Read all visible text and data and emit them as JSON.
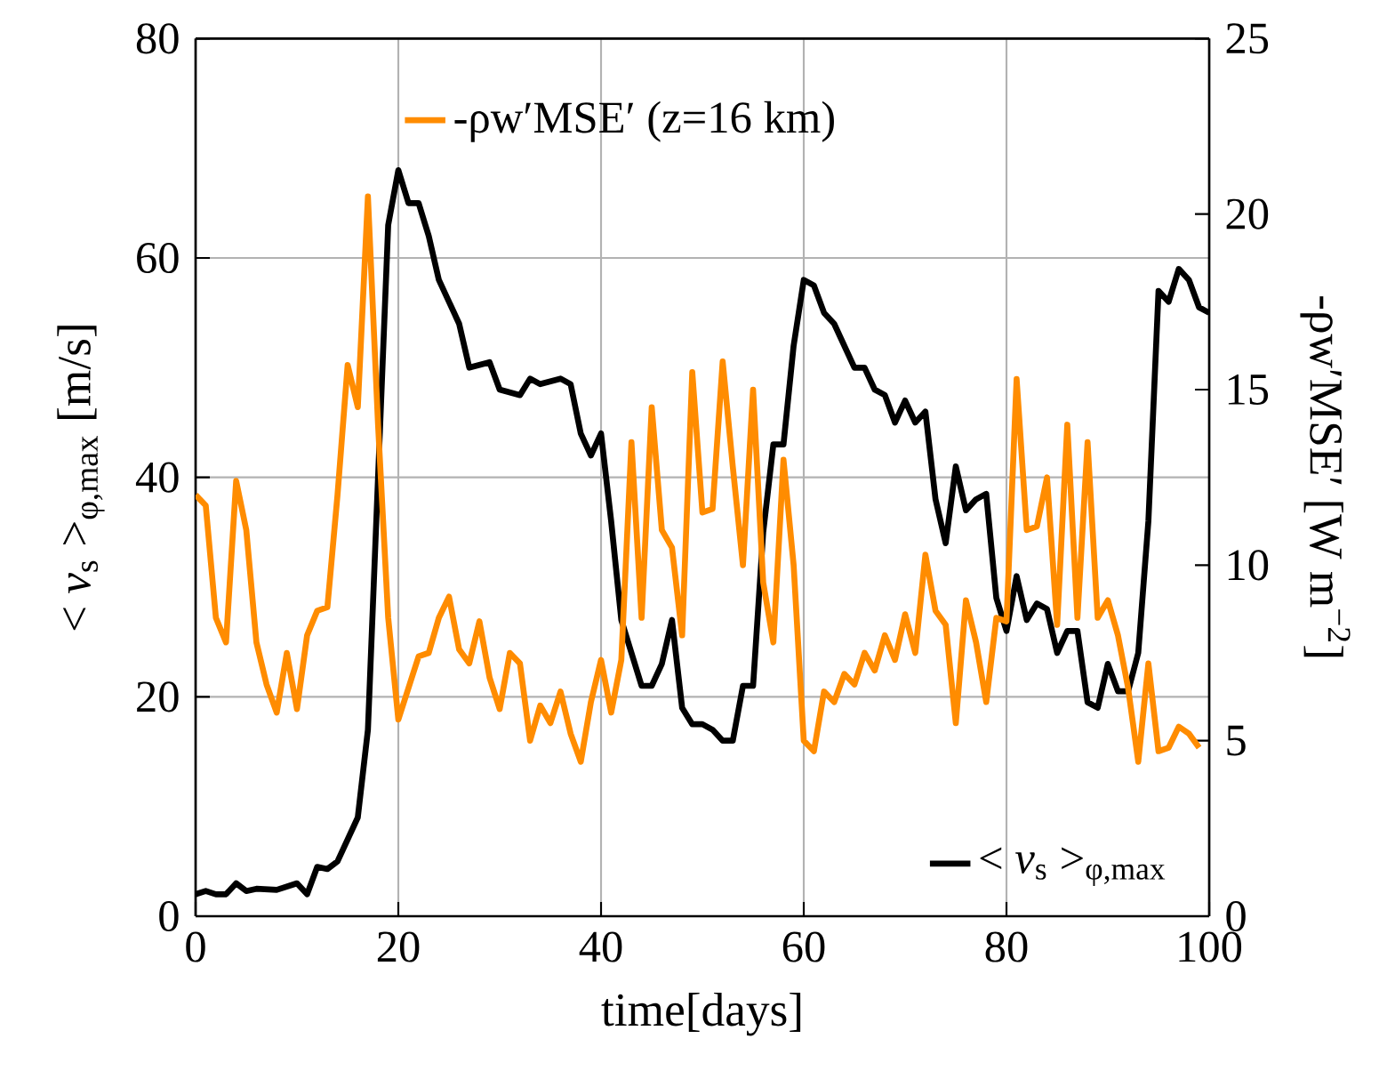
{
  "chart_data": {
    "type": "line",
    "xlabel": "time[days]",
    "ylabel": "< *v*$_{s}$ >$_{φ,max}$ [m/s]",
    "y2label": "-ρw′MSE′ [W m$^{−2}$]",
    "xlim": [
      0,
      100
    ],
    "xticks": [
      0,
      20,
      40,
      60,
      80,
      100
    ],
    "ylim": [
      0,
      80
    ],
    "yticks": [
      0,
      20,
      40,
      60,
      80
    ],
    "y2lim": [
      0,
      25
    ],
    "y2ticks": [
      0,
      5,
      10,
      15,
      20,
      25
    ],
    "grid": true,
    "legend": "right",
    "series": [
      {
        "name": "< *v*$_{s}$ >$_{φ,max}$",
        "color": "#000000",
        "x": [
          0,
          1,
          2,
          3,
          4,
          5,
          6,
          8,
          10,
          11,
          12,
          13,
          14,
          15,
          16,
          17,
          18,
          19,
          20,
          21,
          22,
          23,
          24,
          26,
          27,
          29,
          30,
          32,
          33,
          34,
          36,
          37,
          38,
          39,
          40,
          41,
          42,
          43,
          44,
          45,
          46,
          47,
          48,
          49,
          50,
          51,
          52,
          53,
          54,
          55,
          56,
          57,
          58,
          59,
          60,
          61,
          62,
          63,
          64,
          65,
          66,
          67,
          68,
          69,
          70,
          71,
          72,
          73,
          74,
          75,
          76,
          77,
          78,
          79,
          80,
          81,
          82,
          83,
          84,
          85,
          86,
          87,
          88,
          89,
          90,
          91,
          92,
          93,
          94,
          95,
          96,
          97,
          98,
          99,
          100
        ],
        "values": [
          2,
          2.3,
          2,
          2,
          3,
          2.3,
          2.5,
          2.4,
          3,
          2,
          4.5,
          4.3,
          5,
          7,
          9,
          17,
          40,
          63,
          68,
          65,
          65,
          62,
          58,
          54,
          50,
          50.5,
          48,
          47.5,
          49,
          48.5,
          49,
          48.5,
          44,
          42,
          44,
          36,
          27,
          24,
          21,
          21,
          23,
          27,
          19,
          17.5,
          17.5,
          17,
          16,
          16,
          21,
          21,
          35,
          43,
          43,
          52,
          58,
          57.5,
          55,
          54,
          52,
          50,
          50,
          48,
          47.5,
          45,
          47,
          45,
          46,
          38,
          34,
          41,
          37,
          38,
          38.5,
          29,
          26,
          31,
          27,
          28.5,
          28,
          24,
          26,
          26,
          19.5,
          19,
          23,
          20.5,
          20.5,
          24,
          36,
          57,
          56,
          59,
          58,
          55.5,
          55
        ]
      },
      {
        "name": "-ρw′MSE′ (z=16 km)",
        "color": "#ff8c00",
        "axis": "y2",
        "x": [
          0,
          1,
          2,
          3,
          4,
          5,
          6,
          7,
          8,
          9,
          10,
          11,
          12,
          13,
          14,
          15,
          16,
          17,
          18,
          19,
          20,
          21,
          22,
          23,
          24,
          25,
          26,
          27,
          28,
          29,
          30,
          31,
          32,
          33,
          34,
          35,
          36,
          37,
          38,
          39,
          40,
          41,
          42,
          43,
          44,
          45,
          46,
          47,
          48,
          49,
          50,
          51,
          52,
          53,
          54,
          55,
          56,
          57,
          58,
          59,
          60,
          61,
          62,
          63,
          64,
          65,
          66,
          67,
          68,
          69,
          70,
          71,
          72,
          73,
          74,
          75,
          76,
          77,
          78,
          79,
          80,
          81,
          82,
          83,
          84,
          85,
          86,
          87,
          88,
          89,
          90,
          91,
          92,
          93,
          94,
          95,
          96,
          97,
          98,
          99
        ],
        "values": [
          12,
          11.7,
          8.5,
          7.8,
          12.4,
          11,
          7.8,
          6.6,
          5.8,
          7.5,
          5.9,
          8,
          8.7,
          8.8,
          12,
          15.7,
          14.5,
          20.5,
          14,
          8.5,
          5.6,
          6.5,
          7.4,
          7.5,
          8.5,
          9.1,
          7.6,
          7.2,
          8.4,
          6.8,
          5.9,
          7.5,
          7.2,
          5,
          6,
          5.5,
          6.4,
          5.2,
          4.4,
          6.1,
          7.3,
          5.8,
          7.3,
          13.5,
          8.5,
          14.5,
          11,
          10.5,
          8,
          15.5,
          11.5,
          11.6,
          15.8,
          12.8,
          10,
          15,
          9.5,
          7.8,
          13,
          10,
          5,
          4.7,
          6.4,
          6.1,
          6.9,
          6.6,
          7.5,
          7,
          8,
          7.3,
          8.6,
          7.5,
          10.3,
          8.7,
          8.3,
          5.5,
          9,
          7.8,
          6.1,
          8.5,
          8.4,
          15.3,
          11,
          11.1,
          12.5,
          8.3,
          14,
          8.5,
          13.5,
          8.5,
          9,
          8,
          6.5,
          4.4,
          7.2,
          4.7,
          4.8,
          5.4,
          5.2,
          4.8
        ]
      }
    ]
  }
}
